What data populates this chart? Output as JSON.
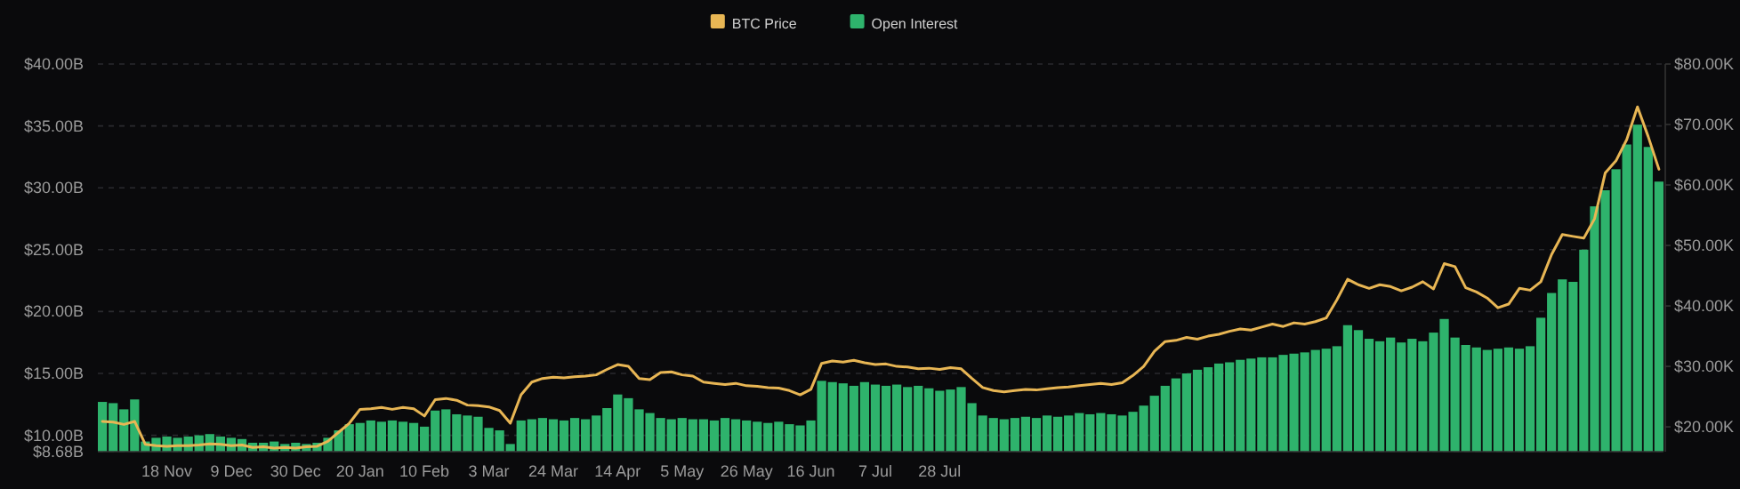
{
  "chart_data": {
    "type": "bar",
    "categories": [
      null,
      null,
      null,
      null,
      null,
      null,
      "18 Nov",
      null,
      null,
      null,
      null,
      null,
      "9 Dec",
      null,
      null,
      null,
      null,
      null,
      "30 Dec",
      null,
      null,
      null,
      null,
      null,
      "20 Jan",
      null,
      null,
      null,
      null,
      null,
      "10 Feb",
      null,
      null,
      null,
      null,
      null,
      "3 Mar",
      null,
      null,
      null,
      null,
      null,
      "24 Mar",
      null,
      null,
      null,
      null,
      null,
      "14 Apr",
      null,
      null,
      null,
      null,
      null,
      "5 May",
      null,
      null,
      null,
      null,
      null,
      "26 May",
      null,
      null,
      null,
      null,
      null,
      "16 Jun",
      null,
      null,
      null,
      null,
      null,
      "7 Jul",
      null,
      null,
      null,
      null,
      null,
      "28 Jul",
      null,
      null,
      null,
      null,
      null,
      null,
      null,
      null,
      null,
      null,
      null,
      null,
      null,
      null,
      null,
      null,
      null,
      null,
      null,
      null,
      null,
      null,
      null,
      null,
      null,
      null,
      null,
      null,
      null,
      null,
      null,
      null,
      null,
      null,
      null,
      null,
      null,
      null,
      null,
      null,
      null,
      null,
      null,
      null,
      null,
      null,
      null,
      null,
      null,
      null,
      null,
      null,
      null,
      null,
      null,
      null,
      null,
      null,
      null,
      null,
      null,
      null,
      null,
      null,
      null,
      null,
      null
    ],
    "series": [
      {
        "name": "Open Interest",
        "type": "bar",
        "color": "#2eb36c",
        "values": [
          12.7,
          12.6,
          12.1,
          12.9,
          9.5,
          9.8,
          9.9,
          9.8,
          9.9,
          10.0,
          10.1,
          9.9,
          9.8,
          9.7,
          9.4,
          9.4,
          9.5,
          9.3,
          9.4,
          9.3,
          9.4,
          9.8,
          10.4,
          10.9,
          11.0,
          11.2,
          11.1,
          11.2,
          11.1,
          11.0,
          10.7,
          12.0,
          12.1,
          11.7,
          11.6,
          11.5,
          10.6,
          10.4,
          9.3,
          11.2,
          11.3,
          11.4,
          11.3,
          11.2,
          11.4,
          11.3,
          11.6,
          12.2,
          13.3,
          13.0,
          12.1,
          11.8,
          11.4,
          11.3,
          11.4,
          11.3,
          11.3,
          11.2,
          11.4,
          11.3,
          11.2,
          11.1,
          11.0,
          11.1,
          10.9,
          10.8,
          11.2,
          14.4,
          14.3,
          14.2,
          14.0,
          14.3,
          14.1,
          14.0,
          14.1,
          13.9,
          14.0,
          13.8,
          13.6,
          13.7,
          13.9,
          12.6,
          11.6,
          11.4,
          11.3,
          11.4,
          11.5,
          11.4,
          11.6,
          11.5,
          11.6,
          11.8,
          11.7,
          11.8,
          11.7,
          11.6,
          11.9,
          12.4,
          13.2,
          14.0,
          14.6,
          15.0,
          15.3,
          15.5,
          15.8,
          15.9,
          16.1,
          16.2,
          16.3,
          16.3,
          16.5,
          16.6,
          16.7,
          16.9,
          17.0,
          17.2,
          18.9,
          18.5,
          17.8,
          17.6,
          17.9,
          17.5,
          17.8,
          17.6,
          18.3,
          19.4,
          17.9,
          17.3,
          17.1,
          16.9,
          17.0,
          17.1,
          17.0,
          17.2,
          19.5,
          21.5,
          22.6,
          22.4,
          25.0,
          28.5,
          29.8,
          31.5,
          33.5,
          35.1,
          33.3,
          30.5
        ]
      },
      {
        "name": "BTC Price",
        "type": "line",
        "axis": "y2",
        "color": "#e8b654",
        "values": [
          20.9,
          20.8,
          20.4,
          20.9,
          17.1,
          16.9,
          16.8,
          16.9,
          16.9,
          17.0,
          17.2,
          17.1,
          16.9,
          17.0,
          16.6,
          16.7,
          16.5,
          16.6,
          16.5,
          16.7,
          16.8,
          17.6,
          19.1,
          20.6,
          22.9,
          23.0,
          23.2,
          22.9,
          23.2,
          23.0,
          21.8,
          24.5,
          24.7,
          24.4,
          23.6,
          23.5,
          23.3,
          22.7,
          20.6,
          25.3,
          27.4,
          28.0,
          28.2,
          28.1,
          28.3,
          28.4,
          28.6,
          29.5,
          30.3,
          30.0,
          28.0,
          27.8,
          29.0,
          29.1,
          28.6,
          28.4,
          27.4,
          27.2,
          27.0,
          27.2,
          26.8,
          26.7,
          26.5,
          26.4,
          26.0,
          25.3,
          26.2,
          30.5,
          30.9,
          30.7,
          31.0,
          30.6,
          30.3,
          30.4,
          30.0,
          29.9,
          29.6,
          29.7,
          29.5,
          29.8,
          29.6,
          28.0,
          26.5,
          26.0,
          25.8,
          26.0,
          26.2,
          26.1,
          26.3,
          26.5,
          26.6,
          26.8,
          27.0,
          27.2,
          27.0,
          27.3,
          28.5,
          30.0,
          32.5,
          34.1,
          34.3,
          34.8,
          34.5,
          35.0,
          35.3,
          35.8,
          36.2,
          36.0,
          36.5,
          37.0,
          36.6,
          37.2,
          37.0,
          37.4,
          38.0,
          41.0,
          44.4,
          43.5,
          42.9,
          43.5,
          43.2,
          42.5,
          43.1,
          44.0,
          42.8,
          47.0,
          46.5,
          43.0,
          42.3,
          41.3,
          39.7,
          40.3,
          42.9,
          42.6,
          44.0,
          48.5,
          51.8,
          51.5,
          51.2,
          54.4,
          62.0,
          64.0,
          67.5,
          72.9,
          68.0,
          62.6
        ]
      }
    ],
    "ylim": [
      8.68,
      40
    ],
    "yticks": [
      {
        "value": 8.68,
        "label": "$8.68B"
      },
      {
        "value": 10,
        "label": "$10.00B"
      },
      {
        "value": 15,
        "label": "$15.00B"
      },
      {
        "value": 20,
        "label": "$20.00B"
      },
      {
        "value": 25,
        "label": "$25.00B"
      },
      {
        "value": 30,
        "label": "$30.00B"
      },
      {
        "value": 35,
        "label": "$35.00B"
      },
      {
        "value": 40,
        "label": "$40.00B"
      }
    ],
    "y2lim": [
      15.9,
      80
    ],
    "y2ticks": [
      {
        "value": 20,
        "label": "$20.00K"
      },
      {
        "value": 30,
        "label": "$30.00K"
      },
      {
        "value": 40,
        "label": "$40.00K"
      },
      {
        "value": 50,
        "label": "$50.00K"
      },
      {
        "value": 60,
        "label": "$60.00K"
      },
      {
        "value": 70,
        "label": "$70.00K"
      },
      {
        "value": 80,
        "label": "$80.00K"
      }
    ],
    "grid": "y",
    "legend": "top"
  }
}
